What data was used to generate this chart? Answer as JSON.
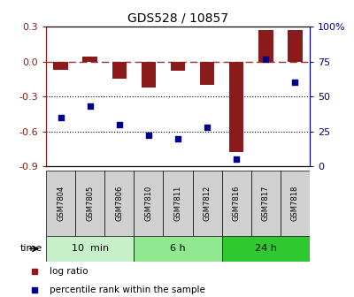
{
  "title": "GDS528 / 10857",
  "samples": [
    "GSM7804",
    "GSM7805",
    "GSM7806",
    "GSM7810",
    "GSM7811",
    "GSM7812",
    "GSM7816",
    "GSM7817",
    "GSM7818"
  ],
  "log_ratio": [
    -0.07,
    0.04,
    -0.15,
    -0.22,
    -0.08,
    -0.2,
    -0.78,
    0.27,
    0.27
  ],
  "percentile_rank": [
    35,
    43,
    30,
    22,
    20,
    28,
    5,
    77,
    60
  ],
  "groups": [
    {
      "label": "10  min",
      "start": 0,
      "end": 3,
      "color": "#c8f0c8"
    },
    {
      "label": "6 h",
      "start": 3,
      "end": 6,
      "color": "#90e890"
    },
    {
      "label": "24 h",
      "start": 6,
      "end": 9,
      "color": "#30c830"
    }
  ],
  "bar_color": "#8B1A1A",
  "dot_color": "#00008B",
  "ylim_left": [
    -0.9,
    0.3
  ],
  "ylim_right": [
    0,
    100
  ],
  "yticks_left": [
    -0.9,
    -0.6,
    -0.3,
    0.0,
    0.3
  ],
  "yticks_right": [
    0,
    25,
    50,
    75,
    100
  ],
  "hline_y": 0.0,
  "dotted_lines": [
    -0.3,
    -0.6
  ],
  "legend_items": [
    {
      "label": "log ratio",
      "color": "#8B1A1A"
    },
    {
      "label": "percentile rank within the sample",
      "color": "#00008B"
    }
  ],
  "time_label": "time",
  "background_color": "#ffffff",
  "bar_width": 0.5,
  "dot_size": 22
}
